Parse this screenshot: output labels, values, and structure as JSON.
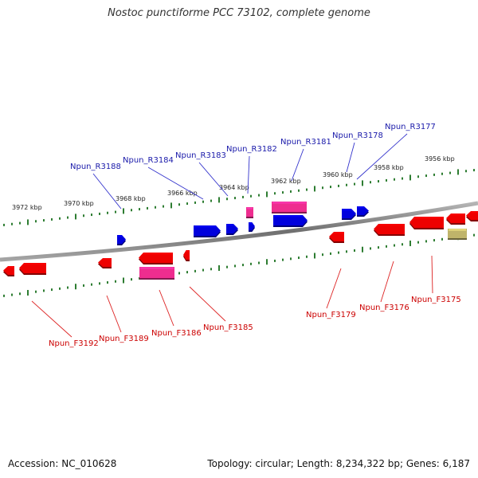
{
  "title": "Nostoc punctiforme PCC 73102, complete genome",
  "footer": {
    "accession": "Accession: NC_010628",
    "topology": "Topology: circular; Length: 8,234,322 bp; Genes: 6,187"
  },
  "ruler_labels": [
    "3972 kbp",
    "3970 kbp",
    "3968 kbp",
    "3966 kbp",
    "3964 kbp",
    "3962 kbp",
    "3960 kbp",
    "3958 kbp",
    "3956 kbp"
  ],
  "reverse_gene_labels": [
    "Npun_R3188",
    "Npun_R3184",
    "Npun_R3183",
    "Npun_R3182",
    "Npun_R3181",
    "Npun_R3178",
    "Npun_R3177"
  ],
  "forward_gene_labels": [
    "Npun_F3192",
    "Npun_F3189",
    "Npun_F3186",
    "Npun_F3185",
    "Npun_F3179",
    "Npun_F3176",
    "Npun_F3175"
  ],
  "colors": {
    "backbone": "#8a8a8a",
    "ticks": "#2e7d32",
    "reverse_gene": "#0000dd",
    "reverse_label": "#1a1aaa",
    "forward_gene": "#ee0000",
    "forward_label": "#cc0000",
    "rna_gene": "#ee2d8f",
    "other_feature": "#bfb46a"
  }
}
